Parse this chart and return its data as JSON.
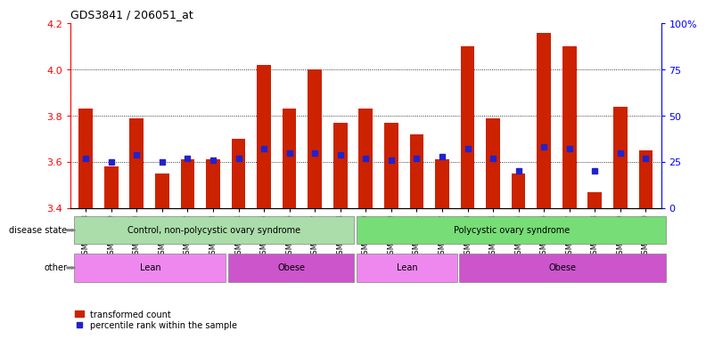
{
  "title": "GDS3841 / 206051_at",
  "samples": [
    "GSM277438",
    "GSM277439",
    "GSM277440",
    "GSM277441",
    "GSM277442",
    "GSM277443",
    "GSM277444",
    "GSM277445",
    "GSM277446",
    "GSM277447",
    "GSM277448",
    "GSM277449",
    "GSM277450",
    "GSM277451",
    "GSM277452",
    "GSM277453",
    "GSM277454",
    "GSM277455",
    "GSM277456",
    "GSM277457",
    "GSM277458",
    "GSM277459",
    "GSM277460"
  ],
  "transformed_count": [
    3.83,
    3.58,
    3.79,
    3.55,
    3.61,
    3.61,
    3.7,
    4.02,
    3.83,
    4.0,
    3.77,
    3.83,
    3.77,
    3.72,
    3.61,
    4.1,
    3.79,
    3.55,
    4.16,
    4.1,
    3.47,
    3.84,
    3.65
  ],
  "percentile_rank": [
    27,
    25,
    29,
    25,
    27,
    26,
    27,
    32,
    30,
    30,
    29,
    27,
    26,
    27,
    28,
    32,
    27,
    20,
    33,
    32,
    20,
    30,
    27
  ],
  "ylim_left": [
    3.4,
    4.2
  ],
  "ylim_right": [
    0,
    100
  ],
  "yticks_left": [
    3.4,
    3.6,
    3.8,
    4.0,
    4.2
  ],
  "yticks_right": [
    0,
    25,
    50,
    75,
    100
  ],
  "ytick_labels_right": [
    "0",
    "25",
    "50",
    "75",
    "100%"
  ],
  "bar_color": "#cc2200",
  "marker_color": "#2222cc",
  "bar_bottom": 3.4,
  "disease_state_groups": [
    {
      "label": "Control, non-polycystic ovary syndrome",
      "start": 0,
      "end": 10,
      "color": "#aaddaa"
    },
    {
      "label": "Polycystic ovary syndrome",
      "start": 11,
      "end": 22,
      "color": "#77dd77"
    }
  ],
  "other_groups": [
    {
      "label": "Lean",
      "start": 0,
      "end": 5,
      "color": "#ee88ee"
    },
    {
      "label": "Obese",
      "start": 6,
      "end": 10,
      "color": "#cc55cc"
    },
    {
      "label": "Lean",
      "start": 11,
      "end": 14,
      "color": "#ee88ee"
    },
    {
      "label": "Obese",
      "start": 15,
      "end": 22,
      "color": "#cc55cc"
    }
  ],
  "disease_state_label": "disease state",
  "other_label": "other",
  "legend_items": [
    "transformed count",
    "percentile rank within the sample"
  ]
}
